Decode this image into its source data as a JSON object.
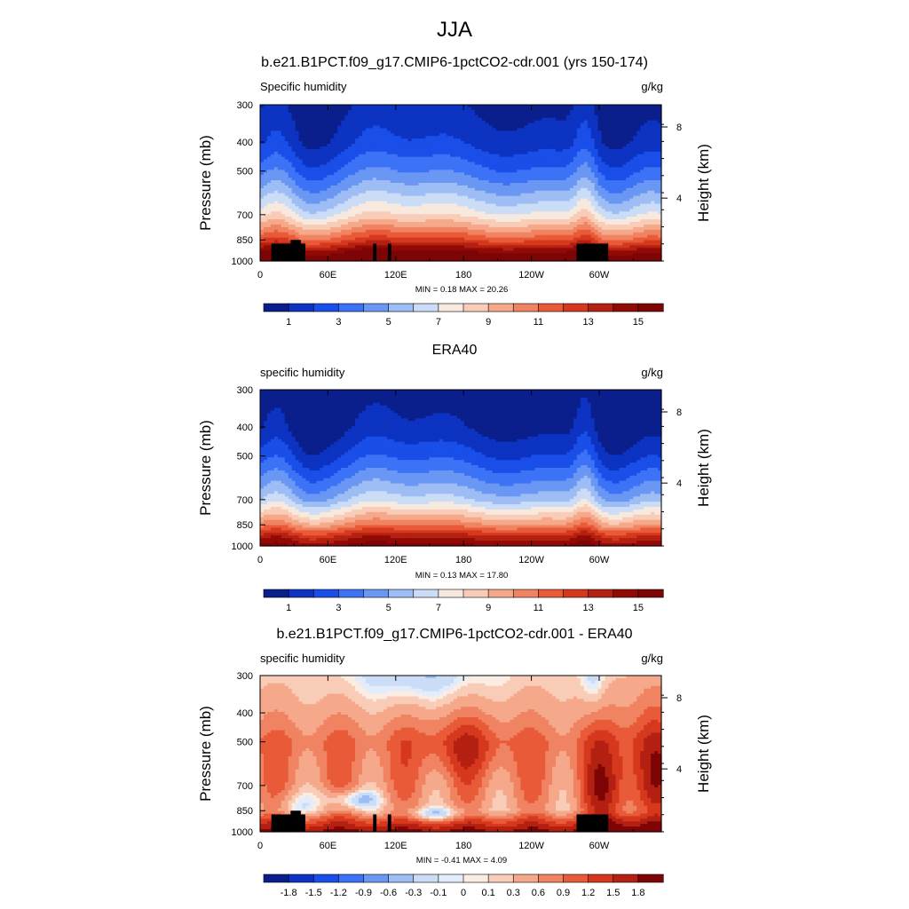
{
  "figure": {
    "title": "JJA"
  },
  "panels": [
    {
      "title": "b.e21.B1PCT.f09_g17.CMIP6-1pctCO2-cdr.001 (yrs 150-174)",
      "left_label": "Specific humidity",
      "right_label": "g/kg",
      "min_max": "MIN =   0.18  MAX =  20.26"
    },
    {
      "title": "ERA40",
      "left_label": "specific humidity",
      "right_label": "g/kg",
      "min_max": "MIN =   0.13  MAX =  17.80"
    },
    {
      "title": "b.e21.B1PCT.f09_g17.CMIP6-1pctCO2-cdr.001 - ERA40",
      "left_label": "specific humidity",
      "right_label": "g/kg",
      "min_max": "MIN =  -0.41  MAX =   4.09"
    }
  ],
  "chart_data": [
    {
      "type": "heatmap",
      "title": "b.e21.B1PCT.f09_g17.CMIP6-1pctCO2-cdr.001 (yrs 150-174)",
      "variable": "Specific humidity",
      "units": "g/kg",
      "xlabel": "",
      "ylabel": "Pressure (mb)",
      "y2label": "Height (km)",
      "x_ticks": [
        "0",
        "60E",
        "120E",
        "180",
        "120W",
        "60W"
      ],
      "x_tick_values": [
        0,
        60,
        120,
        180,
        240,
        300
      ],
      "xlim": [
        0,
        355
      ],
      "y_ticks": [
        "300",
        "400",
        "500",
        "700",
        "850",
        "1000"
      ],
      "y_tick_values": [
        300,
        400,
        500,
        700,
        850,
        1000
      ],
      "ylim": [
        1000,
        300
      ],
      "y_scale": "log",
      "y2_ticks": [
        "8",
        "4"
      ],
      "colorbar_labels": [
        "1",
        "3",
        "5",
        "7",
        "9",
        "11",
        "13",
        "15"
      ],
      "colorbar_colors": [
        "#0a1e8c",
        "#0c33c1",
        "#1a4ee8",
        "#3c72f5",
        "#6a97f3",
        "#9dbdf4",
        "#cbdcf6",
        "#f7e9de",
        "#f8ccb6",
        "#f5a98a",
        "#f08462",
        "#e85a38",
        "#d5381d",
        "#b42011",
        "#920a06",
        "#7d0505"
      ],
      "profile_levels": [
        300,
        400,
        500,
        700,
        850,
        925,
        1000
      ],
      "profile_values": [
        0.5,
        1.3,
        3.0,
        7.0,
        11.5,
        14.5,
        16.5
      ],
      "min": 0.18,
      "max": 20.26
    },
    {
      "type": "heatmap",
      "title": "ERA40",
      "variable": "specific humidity",
      "units": "g/kg",
      "xlabel": "",
      "ylabel": "Pressure (mb)",
      "y2label": "Height (km)",
      "x_ticks": [
        "0",
        "60E",
        "120E",
        "180",
        "120W",
        "60W"
      ],
      "x_tick_values": [
        0,
        60,
        120,
        180,
        240,
        300
      ],
      "xlim": [
        0,
        355
      ],
      "y_ticks": [
        "300",
        "400",
        "500",
        "700",
        "850",
        "1000"
      ],
      "y_tick_values": [
        300,
        400,
        500,
        700,
        850,
        1000
      ],
      "ylim": [
        1000,
        300
      ],
      "y_scale": "log",
      "y2_ticks": [
        "8",
        "4"
      ],
      "colorbar_labels": [
        "1",
        "3",
        "5",
        "7",
        "9",
        "11",
        "13",
        "15"
      ],
      "colorbar_colors": [
        "#0a1e8c",
        "#0c33c1",
        "#1a4ee8",
        "#3c72f5",
        "#6a97f3",
        "#9dbdf4",
        "#cbdcf6",
        "#f7e9de",
        "#f8ccb6",
        "#f5a98a",
        "#f08462",
        "#e85a38",
        "#d5381d",
        "#b42011",
        "#920a06",
        "#7d0505"
      ],
      "profile_levels": [
        300,
        400,
        500,
        700,
        850,
        925,
        1000
      ],
      "profile_values": [
        0.4,
        1.0,
        2.4,
        6.0,
        10.5,
        13.5,
        15.5
      ],
      "min": 0.13,
      "max": 17.8
    },
    {
      "type": "heatmap",
      "title": "b.e21.B1PCT.f09_g17.CMIP6-1pctCO2-cdr.001 - ERA40",
      "variable": "specific humidity",
      "units": "g/kg",
      "xlabel": "",
      "ylabel": "Pressure (mb)",
      "y2label": "Height (km)",
      "x_ticks": [
        "0",
        "60E",
        "120E",
        "180",
        "120W",
        "60W"
      ],
      "x_tick_values": [
        0,
        60,
        120,
        180,
        240,
        300
      ],
      "xlim": [
        0,
        355
      ],
      "y_ticks": [
        "300",
        "400",
        "500",
        "700",
        "850",
        "1000"
      ],
      "y_tick_values": [
        300,
        400,
        500,
        700,
        850,
        1000
      ],
      "ylim": [
        1000,
        300
      ],
      "y_scale": "log",
      "y2_ticks": [
        "8",
        "4"
      ],
      "colorbar_labels": [
        "-1.8",
        "-1.5",
        "-1.2",
        "-0.9",
        "-0.6",
        "-0.3",
        "-0.1",
        "0",
        "0.1",
        "0.3",
        "0.6",
        "0.9",
        "1.2",
        "1.5",
        "1.8"
      ],
      "colorbar_colors": [
        "#0a1e8c",
        "#0c33c1",
        "#1a4ee8",
        "#3c72f5",
        "#6a97f3",
        "#9dbdf4",
        "#cbdcf6",
        "#e2ecfa",
        "#fbede3",
        "#f8ccb6",
        "#f5a98a",
        "#f08462",
        "#e85a38",
        "#d5381d",
        "#b42011",
        "#7d0505"
      ],
      "profile_levels": [
        300,
        400,
        500,
        700,
        850,
        925,
        1000
      ],
      "profile_values": [
        0.2,
        0.5,
        0.9,
        0.7,
        0.5,
        1.3,
        1.9
      ],
      "min": -0.41,
      "max": 4.09
    }
  ]
}
